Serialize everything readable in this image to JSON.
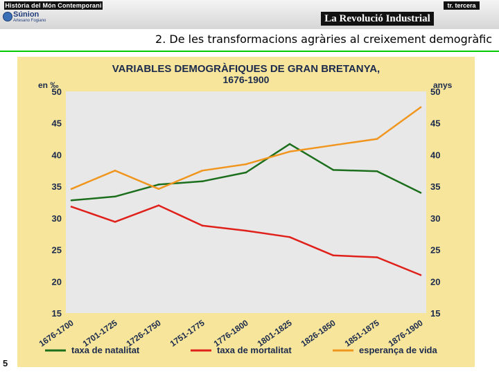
{
  "header": {
    "course_label": "Història del Món Contemporani",
    "logo_name": "Súnion",
    "logo_sub": "Artesano Fogiano",
    "tag": "tr. tercera",
    "unit_title": "La Revolució Industrial",
    "subtitle_part1": "2. De les transformacions agràries",
    "subtitle_part2": " al creixement demogràfic"
  },
  "page_number": "5",
  "colors": {
    "natalitat": "#1b6e1b",
    "mortalitat": "#e0211b",
    "esperanca": "#f0961e",
    "plot_bg": "#e8e8e8",
    "frame_bg": "#f6e59a",
    "title": "#1c2a4d"
  },
  "chart_data": {
    "type": "line",
    "title_line1": "VARIABLES DEMOGRÀFIQUES DE GRAN BRETANYA,",
    "title_line2": "1676-1900",
    "ylabel_left": "en ‰",
    "ylabel_right": "anys",
    "ylim": [
      15,
      50
    ],
    "yticks": [
      50,
      45,
      40,
      35,
      30,
      25,
      20,
      15
    ],
    "categories": [
      "1676-1700",
      "1701-1725",
      "1726-1750",
      "1751-1775",
      "1776-1800",
      "1801-1825",
      "1826-1850",
      "1851-1875",
      "1876-1900"
    ],
    "grid": false,
    "legend_position": "bottom",
    "series": [
      {
        "name": "taxa de natalitat",
        "color": "#1b6e1b",
        "values": [
          32.8,
          33.4,
          35.3,
          35.8,
          37.2,
          41.7,
          37.6,
          37.4,
          34.0
        ]
      },
      {
        "name": "taxa de mortalitat",
        "color": "#e0211b",
        "values": [
          31.8,
          29.4,
          32.0,
          28.8,
          28.0,
          27.0,
          24.1,
          23.8,
          21.0
        ]
      },
      {
        "name": "esperança de vida",
        "color": "#f0961e",
        "values": [
          34.6,
          37.5,
          34.6,
          37.5,
          38.5,
          40.5,
          41.5,
          42.5,
          47.5
        ]
      }
    ]
  }
}
